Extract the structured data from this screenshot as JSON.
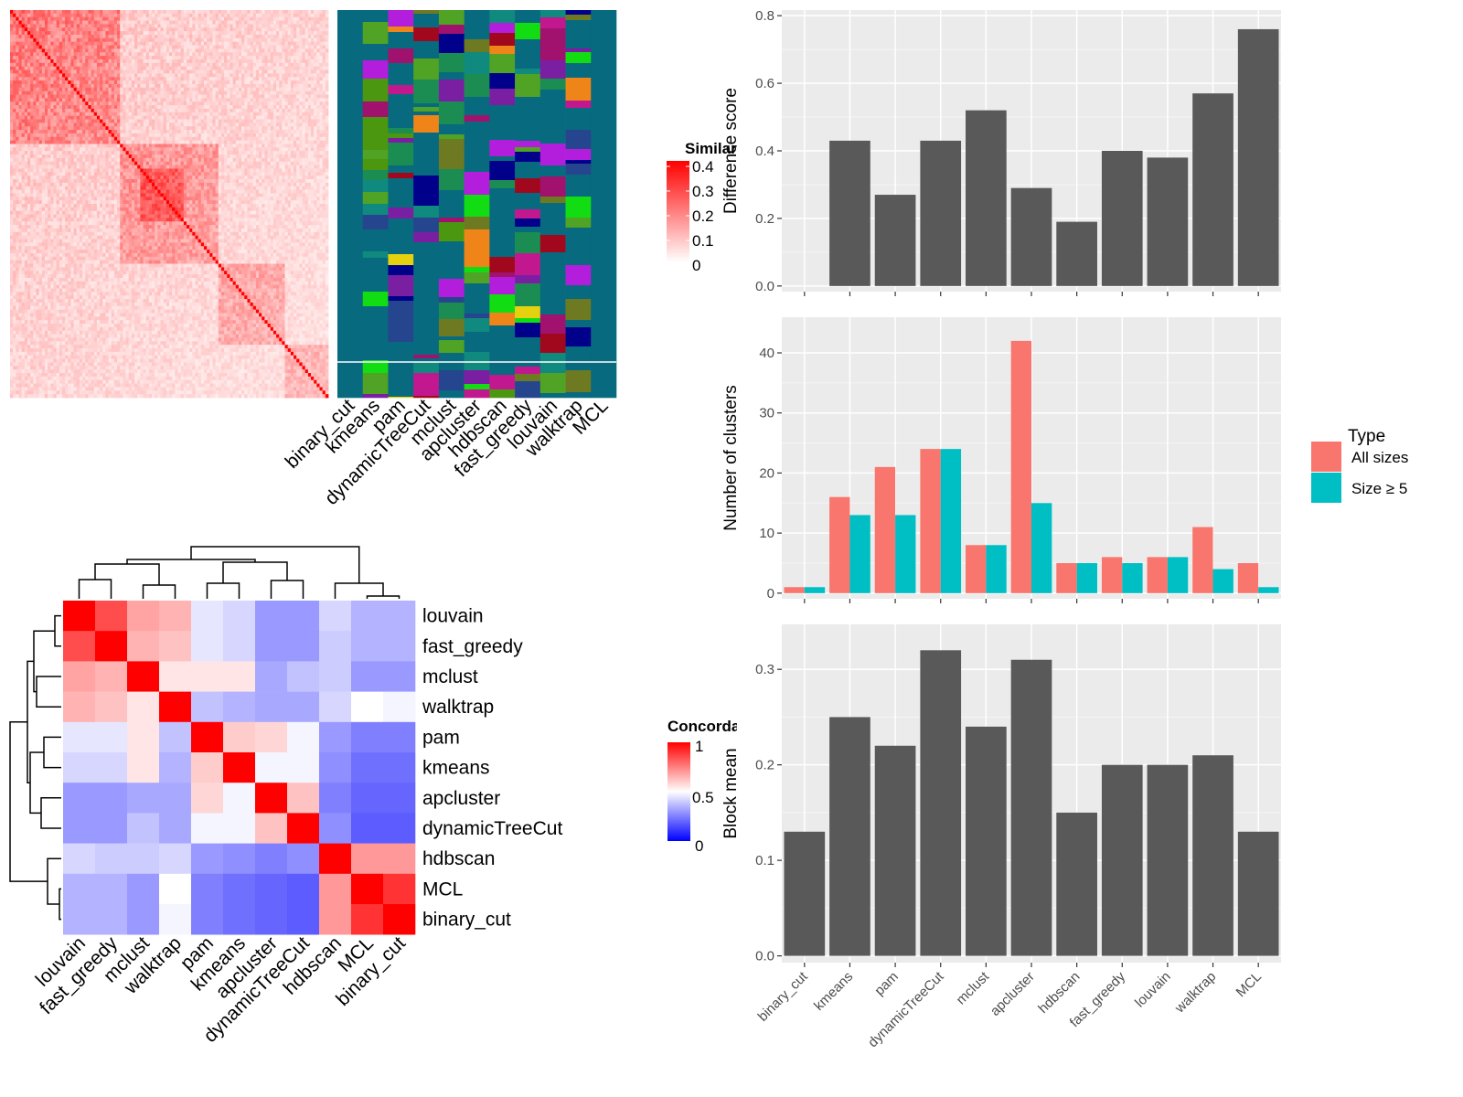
{
  "palette": {
    "panel_bg": "#EBEBEB",
    "grid": "#FFFFFF",
    "bar": "#595959",
    "all_sizes": "#F8766D",
    "size_ge5": "#00BFC4",
    "heat_high": "#FF0000",
    "heat_mid": "#FFFFFF",
    "heat_low": "#0000FF",
    "cluster_colors": [
      "#076A7E",
      "#7B1FA2",
      "#E6D10E",
      "#C2188F",
      "#EF8519",
      "#4B9710",
      "#10897E",
      "#A1081D",
      "#26458F",
      "#50A324",
      "#6E7A22",
      "#B31DDC",
      "#12DD13",
      "#00008B",
      "#A0126E",
      "#1B8C52"
    ]
  },
  "similarity_heatmap": {
    "legend_title": "Similarity",
    "legend_ticks": [
      "0.4",
      "0.3",
      "0.2",
      "0.1",
      "0"
    ],
    "methods": [
      "binary_cut",
      "kmeans",
      "pam",
      "dynamicTreeCut",
      "mclust",
      "apcluster",
      "hdbscan",
      "fast_greedy",
      "louvain",
      "walktrap",
      "MCL"
    ]
  },
  "concordance_heatmap": {
    "legend_title": "Concordance",
    "legend_ticks": [
      "1",
      "0.5",
      "0"
    ],
    "row_labels": [
      "louvain",
      "fast_greedy",
      "mclust",
      "walktrap",
      "pam",
      "kmeans",
      "apcluster",
      "dynamicTreeCut",
      "hdbscan",
      "MCL",
      "binary_cut"
    ],
    "col_labels": [
      "louvain",
      "fast_greedy",
      "mclust",
      "walktrap",
      "pam",
      "kmeans",
      "apcluster",
      "dynamicTreeCut",
      "hdbscan",
      "MCL",
      "binary_cut"
    ],
    "values": [
      [
        1.0,
        0.85,
        0.68,
        0.65,
        0.45,
        0.42,
        0.3,
        0.3,
        0.42,
        0.35,
        0.35
      ],
      [
        0.85,
        1.0,
        0.65,
        0.62,
        0.45,
        0.42,
        0.3,
        0.3,
        0.4,
        0.35,
        0.35
      ],
      [
        0.68,
        0.65,
        1.0,
        0.55,
        0.55,
        0.55,
        0.33,
        0.38,
        0.4,
        0.3,
        0.3
      ],
      [
        0.65,
        0.62,
        0.55,
        1.0,
        0.38,
        0.35,
        0.33,
        0.33,
        0.42,
        0.5,
        0.48
      ],
      [
        0.45,
        0.45,
        0.55,
        0.38,
        1.0,
        0.6,
        0.58,
        0.48,
        0.3,
        0.25,
        0.25
      ],
      [
        0.42,
        0.42,
        0.55,
        0.35,
        0.6,
        1.0,
        0.48,
        0.48,
        0.28,
        0.22,
        0.22
      ],
      [
        0.3,
        0.3,
        0.33,
        0.33,
        0.58,
        0.48,
        1.0,
        0.62,
        0.25,
        0.2,
        0.2
      ],
      [
        0.3,
        0.3,
        0.38,
        0.33,
        0.48,
        0.48,
        0.62,
        1.0,
        0.28,
        0.18,
        0.18
      ],
      [
        0.42,
        0.4,
        0.4,
        0.42,
        0.3,
        0.28,
        0.25,
        0.28,
        1.0,
        0.7,
        0.7
      ],
      [
        0.35,
        0.35,
        0.3,
        0.5,
        0.25,
        0.22,
        0.2,
        0.18,
        0.7,
        1.0,
        0.9
      ],
      [
        0.35,
        0.35,
        0.3,
        0.48,
        0.25,
        0.22,
        0.2,
        0.18,
        0.7,
        0.9,
        1.0
      ]
    ]
  },
  "chart_data": [
    {
      "type": "bar",
      "categories": [
        "binary_cut",
        "kmeans",
        "pam",
        "dynamicTreeCut",
        "mclust",
        "apcluster",
        "hdbscan",
        "fast_greedy",
        "louvain",
        "walktrap",
        "MCL"
      ],
      "values": [
        0.0,
        0.43,
        0.27,
        0.43,
        0.52,
        0.29,
        0.19,
        0.4,
        0.38,
        0.57,
        0.76
      ],
      "ylabel": "Difference score",
      "ylim": [
        0,
        0.8
      ],
      "yticks": [
        "0.0",
        "0.2",
        "0.4",
        "0.6",
        "0.8"
      ],
      "grid": true
    },
    {
      "type": "bar",
      "categories": [
        "binary_cut",
        "kmeans",
        "pam",
        "dynamicTreeCut",
        "mclust",
        "apcluster",
        "hdbscan",
        "fast_greedy",
        "louvain",
        "walktrap",
        "MCL"
      ],
      "series": [
        {
          "name": "All sizes",
          "values": [
            1,
            16,
            21,
            24,
            8,
            42,
            5,
            6,
            6,
            11,
            5
          ]
        },
        {
          "name": "Size ≥ 5",
          "values": [
            1,
            13,
            13,
            24,
            8,
            15,
            5,
            5,
            6,
            4,
            1
          ]
        }
      ],
      "ylabel": "Number of clusters",
      "ylim": [
        0,
        45
      ],
      "yticks": [
        "0",
        "10",
        "20",
        "30",
        "40"
      ],
      "legend_title": "Type",
      "legend_position": "right",
      "grid": true
    },
    {
      "type": "bar",
      "categories": [
        "binary_cut",
        "kmeans",
        "pam",
        "dynamicTreeCut",
        "mclust",
        "apcluster",
        "hdbscan",
        "fast_greedy",
        "louvain",
        "walktrap",
        "MCL"
      ],
      "values": [
        0.13,
        0.25,
        0.22,
        0.32,
        0.24,
        0.31,
        0.15,
        0.2,
        0.2,
        0.21,
        0.13
      ],
      "ylabel": "Block mean",
      "ylim": [
        0,
        0.34
      ],
      "yticks": [
        "0.0",
        "0.1",
        "0.2",
        "0.3"
      ],
      "grid": true
    }
  ]
}
